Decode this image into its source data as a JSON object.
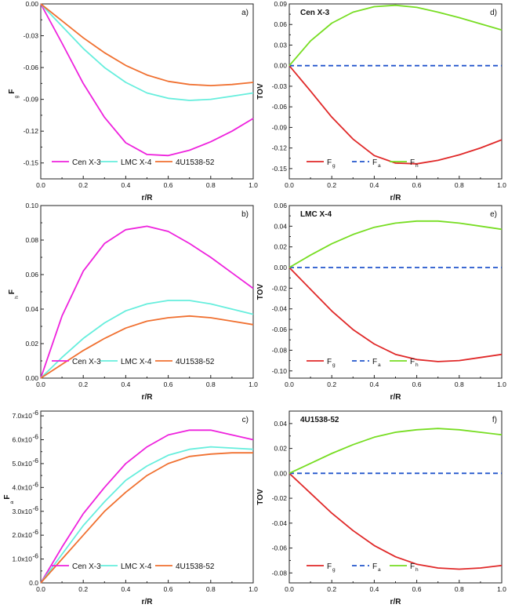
{
  "colors": {
    "cen_x3": "#ee22dd",
    "lmc_x4": "#66eedd",
    "u1538": "#f07030",
    "fg": "#e02828",
    "fa": "#2255cc",
    "fh": "#77dd22"
  },
  "chart_data": [
    {
      "id": "a",
      "type": "line",
      "panel_label": "a)",
      "title": "",
      "xlabel": "r/R",
      "ylabel": "F",
      "ylabel_sub": "g",
      "xlim": [
        0,
        1
      ],
      "ylim": [
        -0.165,
        0
      ],
      "xticks": [
        0.0,
        0.2,
        0.4,
        0.6,
        0.8,
        1.0
      ],
      "xtick_labels": [
        "0.0",
        "0.2",
        "0.4",
        "0.6",
        "0.8",
        "1.0"
      ],
      "yticks": [
        0,
        -0.03,
        -0.06,
        -0.09,
        -0.12,
        -0.15
      ],
      "ytick_labels": [
        "0.00",
        "-0.03",
        "-0.06",
        "-0.09",
        "-0.12",
        "-0.15"
      ],
      "legend": "bottom",
      "x": [
        0,
        0.1,
        0.2,
        0.3,
        0.4,
        0.5,
        0.6,
        0.7,
        0.8,
        0.9,
        1.0
      ],
      "series": [
        {
          "name": "Cen X-3",
          "color_key": "cen_x3",
          "dash": "",
          "values": [
            0,
            -0.037,
            -0.075,
            -0.107,
            -0.131,
            -0.142,
            -0.143,
            -0.138,
            -0.13,
            -0.12,
            -0.108
          ]
        },
        {
          "name": "LMC X-4",
          "color_key": "lmc_x4",
          "dash": "",
          "values": [
            0,
            -0.021,
            -0.042,
            -0.06,
            -0.074,
            -0.084,
            -0.089,
            -0.091,
            -0.09,
            -0.087,
            -0.084
          ]
        },
        {
          "name": "4U1538-52",
          "color_key": "u1538",
          "dash": "",
          "values": [
            0,
            -0.016,
            -0.032,
            -0.046,
            -0.058,
            -0.067,
            -0.073,
            -0.076,
            -0.077,
            -0.076,
            -0.074
          ]
        }
      ],
      "legend_items": [
        {
          "text": "Cen X-3",
          "sub": "",
          "color_key": "cen_x3",
          "dash": ""
        },
        {
          "text": "LMC X-4",
          "sub": "",
          "color_key": "lmc_x4",
          "dash": ""
        },
        {
          "text": "4U1538-52",
          "sub": "",
          "color_key": "u1538",
          "dash": ""
        }
      ]
    },
    {
      "id": "b",
      "type": "line",
      "panel_label": "b)",
      "title": "",
      "xlabel": "r/R",
      "ylabel": "F",
      "ylabel_sub": "h",
      "xlim": [
        0,
        1
      ],
      "ylim": [
        0,
        0.1
      ],
      "xticks": [
        0.0,
        0.2,
        0.4,
        0.6,
        0.8,
        1.0
      ],
      "xtick_labels": [
        "0.0",
        "0.2",
        "0.4",
        "0.6",
        "0.8",
        "1.0"
      ],
      "yticks": [
        0,
        0.02,
        0.04,
        0.06,
        0.08,
        0.1
      ],
      "ytick_labels": [
        "0.00",
        "0.02",
        "0.04",
        "0.06",
        "0.08",
        "0.10"
      ],
      "legend": "bottom",
      "x": [
        0,
        0.1,
        0.2,
        0.3,
        0.4,
        0.5,
        0.6,
        0.7,
        0.8,
        0.9,
        1.0
      ],
      "series": [
        {
          "name": "Cen X-3",
          "color_key": "cen_x3",
          "dash": "",
          "values": [
            0,
            0.036,
            0.062,
            0.078,
            0.086,
            0.088,
            0.085,
            0.078,
            0.07,
            0.061,
            0.052
          ]
        },
        {
          "name": "LMC X-4",
          "color_key": "lmc_x4",
          "dash": "",
          "values": [
            0,
            0.012,
            0.023,
            0.032,
            0.039,
            0.043,
            0.045,
            0.045,
            0.043,
            0.04,
            0.037
          ]
        },
        {
          "name": "4U1538-52",
          "color_key": "u1538",
          "dash": "",
          "values": [
            0,
            0.008,
            0.016,
            0.023,
            0.029,
            0.033,
            0.035,
            0.036,
            0.035,
            0.033,
            0.031
          ]
        }
      ],
      "legend_items": [
        {
          "text": "Cen X-3",
          "sub": "",
          "color_key": "cen_x3",
          "dash": ""
        },
        {
          "text": "LMC X-4",
          "sub": "",
          "color_key": "lmc_x4",
          "dash": ""
        },
        {
          "text": "4U1538-52",
          "sub": "",
          "color_key": "u1538",
          "dash": ""
        }
      ]
    },
    {
      "id": "c",
      "type": "line",
      "panel_label": "c)",
      "title": "",
      "xlabel": "r/R",
      "ylabel": "F",
      "ylabel_sub": "a",
      "xlim": [
        0,
        1
      ],
      "ylim": [
        0,
        7.2e-06
      ],
      "xticks": [
        0.0,
        0.2,
        0.4,
        0.6,
        0.8,
        1.0
      ],
      "xtick_labels": [
        "0.0",
        "0.2",
        "0.4",
        "0.6",
        "0.8",
        "1.0"
      ],
      "yticks": [
        0,
        1e-06,
        2e-06,
        3e-06,
        4e-06,
        5e-06,
        6e-06,
        7e-06
      ],
      "ytick_labels": [
        "0.0",
        "1.0x10",
        "2.0x10",
        "3.0x10",
        "4.0x10",
        "5.0x10",
        "6.0x10",
        "7.0x10"
      ],
      "ytick_exponents": [
        "",
        "-6",
        "-6",
        "-6",
        "-6",
        "-6",
        "-6",
        "-6"
      ],
      "legend": "bottom",
      "x": [
        0,
        0.1,
        0.2,
        0.3,
        0.4,
        0.5,
        0.6,
        0.7,
        0.8,
        0.9,
        1.0
      ],
      "series": [
        {
          "name": "Cen X-3",
          "color_key": "cen_x3",
          "dash": "",
          "values": [
            0,
            1.5e-06,
            2.9e-06,
            4e-06,
            5e-06,
            5.7e-06,
            6.2e-06,
            6.4e-06,
            6.4e-06,
            6.2e-06,
            6e-06
          ]
        },
        {
          "name": "LMC X-4",
          "color_key": "lmc_x4",
          "dash": "",
          "values": [
            0,
            1.2e-06,
            2.4e-06,
            3.4e-06,
            4.3e-06,
            4.9e-06,
            5.35e-06,
            5.6e-06,
            5.7e-06,
            5.65e-06,
            5.6e-06
          ]
        },
        {
          "name": "4U1538-52",
          "color_key": "u1538",
          "dash": "",
          "values": [
            0,
            1e-06,
            2e-06,
            3e-06,
            3.8e-06,
            4.5e-06,
            5e-06,
            5.3e-06,
            5.4e-06,
            5.45e-06,
            5.45e-06
          ]
        }
      ],
      "legend_items": [
        {
          "text": "Cen X-3",
          "sub": "",
          "color_key": "cen_x3",
          "dash": ""
        },
        {
          "text": "LMC X-4",
          "sub": "",
          "color_key": "lmc_x4",
          "dash": ""
        },
        {
          "text": "4U1538-52",
          "sub": "",
          "color_key": "u1538",
          "dash": ""
        }
      ]
    },
    {
      "id": "d",
      "type": "line",
      "panel_label": "d)",
      "title": "Cen X-3",
      "xlabel": "r/R",
      "ylabel": "TOV",
      "ylabel_sub": "",
      "xlim": [
        0,
        1
      ],
      "ylim": [
        -0.165,
        0.09
      ],
      "xticks": [
        0.0,
        0.2,
        0.4,
        0.6,
        0.8,
        1.0
      ],
      "xtick_labels": [
        "0.0",
        "0.2",
        "0.4",
        "0.6",
        "0.8",
        "1.0"
      ],
      "yticks": [
        0.09,
        0.06,
        0.03,
        0,
        -0.03,
        -0.06,
        -0.09,
        -0.12,
        -0.15
      ],
      "ytick_labels": [
        "0.09",
        "0.06",
        "0.03",
        "0.00",
        "-0.03",
        "-0.06",
        "-0.09",
        "-0.12",
        "-0.15"
      ],
      "legend": "bottom-left",
      "x": [
        0,
        0.1,
        0.2,
        0.3,
        0.4,
        0.5,
        0.6,
        0.7,
        0.8,
        0.9,
        1.0
      ],
      "series": [
        {
          "name": "Fg",
          "color_key": "fg",
          "dash": "",
          "values": [
            0,
            -0.037,
            -0.075,
            -0.107,
            -0.131,
            -0.142,
            -0.143,
            -0.138,
            -0.13,
            -0.12,
            -0.108
          ]
        },
        {
          "name": "Fa",
          "color_key": "fa",
          "dash": "6,4",
          "values": [
            0,
            0,
            0,
            0,
            0,
            0,
            0,
            0,
            0,
            0,
            0
          ]
        },
        {
          "name": "Fh",
          "color_key": "fh",
          "dash": "",
          "values": [
            0,
            0.036,
            0.062,
            0.078,
            0.086,
            0.088,
            0.085,
            0.078,
            0.07,
            0.061,
            0.052
          ]
        }
      ],
      "legend_items": [
        {
          "text": "F",
          "sub": "g",
          "color_key": "fg",
          "dash": ""
        },
        {
          "text": "F",
          "sub": "a",
          "color_key": "fa",
          "dash": "6,4"
        },
        {
          "text": "F",
          "sub": "h",
          "color_key": "fh",
          "dash": ""
        }
      ]
    },
    {
      "id": "e",
      "type": "line",
      "panel_label": "e)",
      "title": "LMC X-4",
      "xlabel": "r/R",
      "ylabel": "TOV",
      "ylabel_sub": "",
      "xlim": [
        0,
        1
      ],
      "ylim": [
        -0.107,
        0.06
      ],
      "xticks": [
        0.0,
        0.2,
        0.4,
        0.6,
        0.8,
        1.0
      ],
      "xtick_labels": [
        "0.0",
        "0.2",
        "0.4",
        "0.6",
        "0.8",
        "1.0"
      ],
      "yticks": [
        0.06,
        0.04,
        0.02,
        0,
        -0.02,
        -0.04,
        -0.06,
        -0.08,
        -0.1
      ],
      "ytick_labels": [
        "0.06",
        "0.04",
        "0.02",
        "0.00",
        "-0.02",
        "-0.04",
        "-0.06",
        "-0.08",
        "-0.10"
      ],
      "legend": "bottom-left",
      "x": [
        0,
        0.1,
        0.2,
        0.3,
        0.4,
        0.5,
        0.6,
        0.7,
        0.8,
        0.9,
        1.0
      ],
      "series": [
        {
          "name": "Fg",
          "color_key": "fg",
          "dash": "",
          "values": [
            0,
            -0.021,
            -0.042,
            -0.06,
            -0.074,
            -0.084,
            -0.089,
            -0.091,
            -0.09,
            -0.087,
            -0.084
          ]
        },
        {
          "name": "Fa",
          "color_key": "fa",
          "dash": "6,4",
          "values": [
            0,
            0,
            0,
            0,
            0,
            0,
            0,
            0,
            0,
            0,
            0
          ]
        },
        {
          "name": "Fh",
          "color_key": "fh",
          "dash": "",
          "values": [
            0,
            0.012,
            0.023,
            0.032,
            0.039,
            0.043,
            0.045,
            0.045,
            0.043,
            0.04,
            0.037
          ]
        }
      ],
      "legend_items": [
        {
          "text": "F",
          "sub": "g",
          "color_key": "fg",
          "dash": ""
        },
        {
          "text": "F",
          "sub": "a",
          "color_key": "fa",
          "dash": "6,4"
        },
        {
          "text": "F",
          "sub": "h",
          "color_key": "fh",
          "dash": ""
        }
      ]
    },
    {
      "id": "f",
      "type": "line",
      "panel_label": "f)",
      "title": "4U1538-52",
      "xlabel": "r/R",
      "ylabel": "TOV",
      "ylabel_sub": "",
      "xlim": [
        0,
        1
      ],
      "ylim": [
        -0.088,
        0.05
      ],
      "xticks": [
        0.0,
        0.2,
        0.4,
        0.6,
        0.8,
        1.0
      ],
      "xtick_labels": [
        "0.0",
        "0.2",
        "0.4",
        "0.6",
        "0.8",
        "1.0"
      ],
      "yticks": [
        0.04,
        0.02,
        0,
        -0.02,
        -0.04,
        -0.06,
        -0.08
      ],
      "ytick_labels": [
        "0.04",
        "0.02",
        "0.00",
        "-0.02",
        "-0.04",
        "-0.06",
        "-0.08"
      ],
      "legend": "bottom-left",
      "x": [
        0,
        0.1,
        0.2,
        0.3,
        0.4,
        0.5,
        0.6,
        0.7,
        0.8,
        0.9,
        1.0
      ],
      "series": [
        {
          "name": "Fg",
          "color_key": "fg",
          "dash": "",
          "values": [
            0,
            -0.016,
            -0.032,
            -0.046,
            -0.058,
            -0.067,
            -0.073,
            -0.076,
            -0.077,
            -0.076,
            -0.074
          ]
        },
        {
          "name": "Fa",
          "color_key": "fa",
          "dash": "6,4",
          "values": [
            0,
            0,
            0,
            0,
            0,
            0,
            0,
            0,
            0,
            0,
            0
          ]
        },
        {
          "name": "Fh",
          "color_key": "fh",
          "dash": "",
          "values": [
            0,
            0.008,
            0.016,
            0.023,
            0.029,
            0.033,
            0.035,
            0.036,
            0.035,
            0.033,
            0.031
          ]
        }
      ],
      "legend_items": [
        {
          "text": "F",
          "sub": "g",
          "color_key": "fg",
          "dash": ""
        },
        {
          "text": "F",
          "sub": "a",
          "color_key": "fa",
          "dash": "6,4"
        },
        {
          "text": "F",
          "sub": "h",
          "color_key": "fh",
          "dash": ""
        }
      ]
    }
  ]
}
